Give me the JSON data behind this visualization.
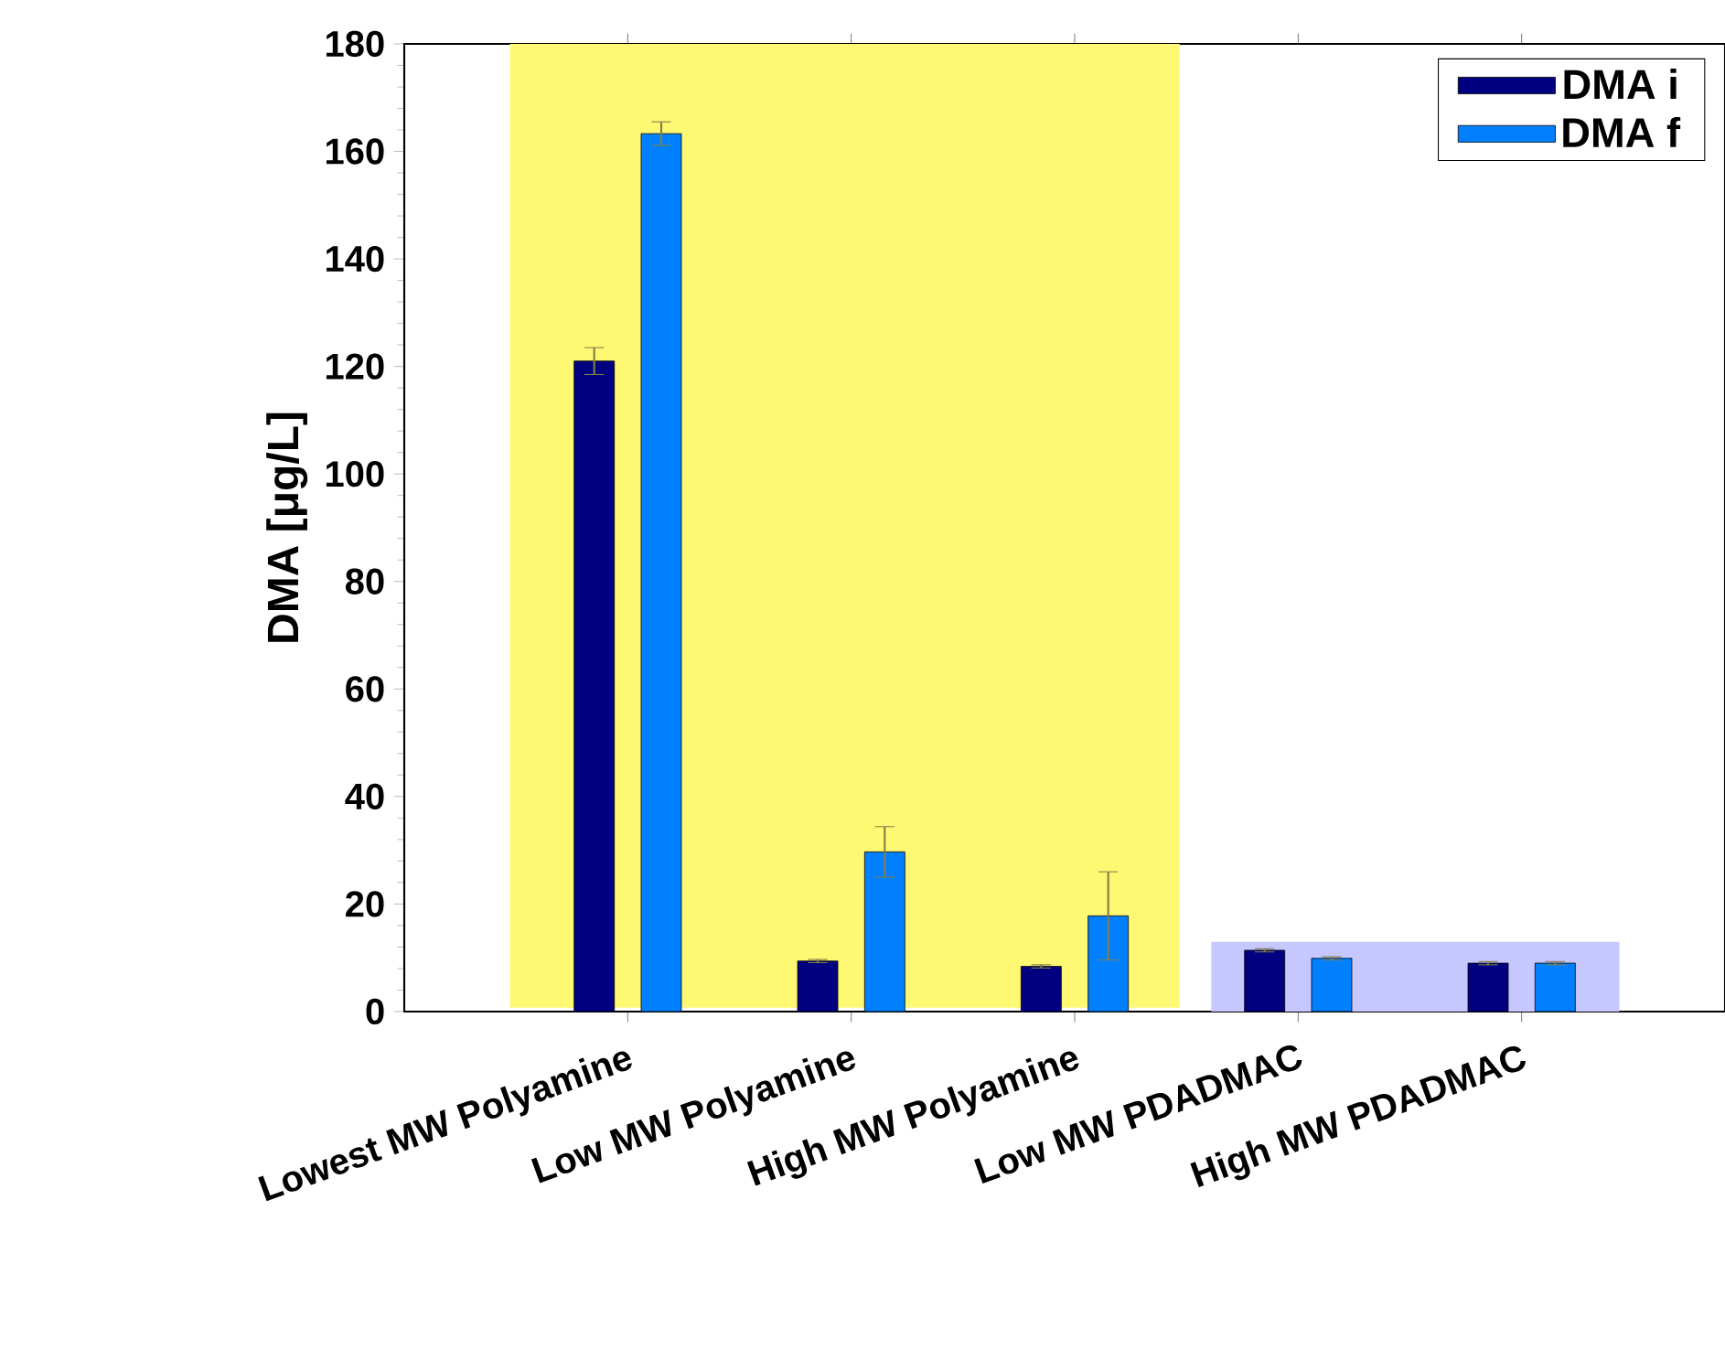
{
  "chart_data": {
    "type": "bar",
    "ylabel": "DMA [μg/L]",
    "categories": [
      "Lowest MW Polyamine",
      "Low MW Polyamine",
      "High MW Polyamine",
      "Low MW PDADMAC",
      "High MW PDADMAC"
    ],
    "series": [
      {
        "name": "DMA i",
        "color": "#000080",
        "values": [
          121,
          9.4,
          8.4,
          11.4,
          9.0
        ],
        "errors": [
          2.5,
          0.3,
          0.3,
          0.3,
          0.3
        ]
      },
      {
        "name": "DMA f",
        "color": "#0080ff",
        "values": [
          163.3,
          29.7,
          17.8,
          9.9,
          9.0
        ],
        "errors": [
          2.2,
          4.7,
          8.2,
          0.3,
          0.3
        ]
      }
    ],
    "ylim": [
      0,
      180
    ],
    "yticks": [
      0,
      20,
      40,
      60,
      80,
      100,
      120,
      140,
      160,
      180
    ],
    "grid": false,
    "legend": "top right"
  }
}
